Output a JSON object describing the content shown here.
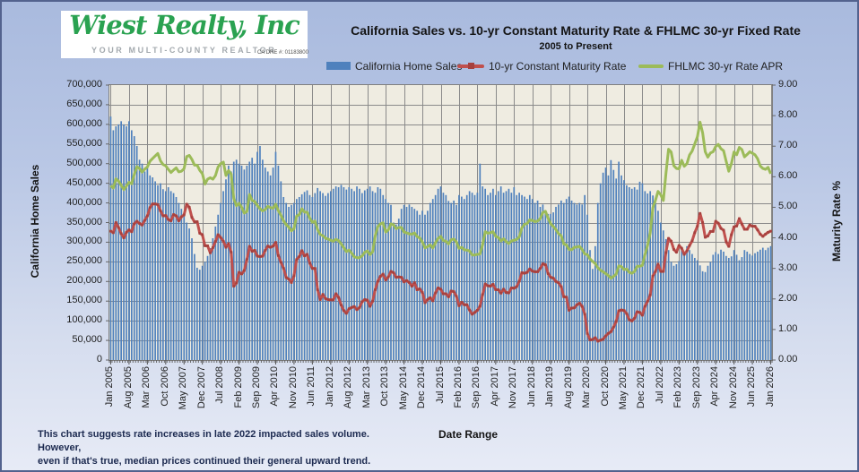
{
  "logo": {
    "name": "Wiest Realty, Inc",
    "name_color": "#2aa251",
    "tagline": "YOUR MULTI-COUNTY REALTOR",
    "license": "CA DRE #: 01183800"
  },
  "header": {
    "title": "California Sales vs. 10-yr Constant Maturity Rate & FHLMC 30-yr Fixed Rate",
    "subtitle": "2005 to Present"
  },
  "legend": {
    "sales_label": "California Home Sales",
    "cmt_label": "10-yr Constant Maturity Rate",
    "fhlmc_label": "FHLMC 30-yr Rate APR"
  },
  "footer": {
    "note_line1": "This chart suggests rate increases in late 2022 impacted sales volume. However,",
    "note_line2": "even if that's true, median prices continued their general upward trend."
  },
  "chart_data": {
    "type": "combo",
    "title": "California Sales vs. 10-yr Constant Maturity Rate & FHLMC 30-yr Fixed Rate",
    "subtitle": "2005 to Present",
    "x_label": "Date Range",
    "y_left_label": "California  Home Sales",
    "y_right_label": "Maturity Rate %",
    "y_left_range": [
      0,
      700000
    ],
    "y_left_tick_step": 50000,
    "y_right_range": [
      0,
      9
    ],
    "y_right_tick_step": 1,
    "grid": true,
    "legend_position": "top",
    "plot_background": "#EFECE1",
    "gridline_color": "#8a8a8a",
    "n_points": 253,
    "x_start": "Jan 2005",
    "x_end": "Jan 2026",
    "x_tick_interval_months": 7,
    "x_tick_labels": [
      "Jan 2005",
      "Aug 2005",
      "Mar 2006",
      "Oct 2006",
      "May 2007",
      "Dec 2007",
      "Jul 2008",
      "Feb 2009",
      "Sep 2009",
      "Apr 2010",
      "Nov 2010",
      "Jun 2011",
      "Jan 2012",
      "Aug 2012",
      "Mar 2013",
      "Oct 2013",
      "May 2014",
      "Dec 2014",
      "Jul 2015",
      "Feb 2016",
      "Sep 2016",
      "Apr 2017",
      "Nov 2017",
      "Jun 2018",
      "Jan 2019",
      "Aug 2019",
      "Mar 2020",
      "Oct 2020",
      "May 2021",
      "Dec 2021",
      "Jul 2022",
      "Feb 2023",
      "Sep 2023",
      "Apr 2024",
      "Nov 2024",
      "Jun 2025",
      "Jan 2026"
    ],
    "y_left_tick_labels": [
      "700,000",
      "650,000",
      "600,000",
      "550,000",
      "500,000",
      "450,000",
      "400,000",
      "350,000",
      "300,000",
      "250,000",
      "200,000",
      "150,000",
      "100,000",
      "50,000",
      "0"
    ],
    "y_right_tick_labels": [
      "9.00",
      "8.00",
      "7.00",
      "6.00",
      "5.00",
      "4.00",
      "3.00",
      "2.00",
      "1.00",
      "0.00"
    ],
    "series": [
      {
        "name": "California Home Sales",
        "type": "bar",
        "axis": "left",
        "color": "#4F81BD",
        "unit": "homes, thousands (annualized monthly, Jan 2005 - Jan 2026, estimated from chart)",
        "values_thousands": [
          620,
          585,
          595,
          600,
          608,
          600,
          595,
          608,
          585,
          570,
          545,
          510,
          500,
          480,
          495,
          470,
          465,
          455,
          445,
          450,
          435,
          430,
          440,
          430,
          425,
          415,
          400,
          385,
          370,
          350,
          335,
          310,
          270,
          235,
          230,
          240,
          250,
          265,
          285,
          310,
          340,
          370,
          400,
          430,
          460,
          495,
          480,
          505,
          510,
          500,
          495,
          485,
          495,
          505,
          515,
          500,
          530,
          545,
          510,
          490,
          480,
          470,
          490,
          530,
          495,
          455,
          415,
          400,
          390,
          395,
          400,
          410,
          415,
          422,
          428,
          432,
          420,
          415,
          425,
          438,
          430,
          425,
          418,
          425,
          430,
          436,
          442,
          440,
          446,
          440,
          434,
          440,
          436,
          430,
          442,
          436,
          425,
          432,
          436,
          442,
          430,
          426,
          440,
          436,
          420,
          410,
          400,
          395,
          350,
          345,
          360,
          385,
          395,
          390,
          396,
          390,
          385,
          380,
          370,
          380,
          370,
          380,
          400,
          410,
          420,
          436,
          442,
          426,
          420,
          405,
          400,
          406,
          395,
          420,
          416,
          410,
          420,
          430,
          426,
          420,
          426,
          500,
          442,
          436,
          420,
          426,
          436,
          420,
          430,
          442,
          426,
          430,
          436,
          426,
          440,
          420,
          426,
          420,
          416,
          410,
          420,
          410,
          400,
          406,
          390,
          396,
          380,
          372,
          372,
          376,
          390,
          396,
          406,
          400,
          410,
          416,
          406,
          400,
          396,
          400,
          396,
          420,
          370,
          280,
          232,
          290,
          400,
          450,
          477,
          490,
          470,
          509,
          484,
          462,
          505,
          470,
          458,
          445,
          440,
          436,
          440,
          434,
          454,
          450,
          430,
          424,
          430,
          419,
          400,
          380,
          350,
          330,
          308,
          280,
          250,
          240,
          244,
          252,
          281,
          268,
          290,
          280,
          270,
          260,
          254,
          241,
          226,
          224,
          240,
          250,
          268,
          275,
          270,
          281,
          276,
          265,
          260,
          264,
          280,
          268,
          254,
          262,
          280,
          276,
          270,
          266,
          272,
          276,
          281,
          286,
          280,
          286,
          290
        ]
      },
      {
        "name": "10-yr Constant Maturity Rate",
        "type": "line",
        "axis": "right",
        "color": "#C0504D",
        "marker_color": "#A6413E",
        "unit": "percent (monthly, Jan 2005 - Jan 2026, estimated from chart)",
        "values_percent": [
          4.22,
          4.17,
          4.5,
          4.34,
          4.14,
          4.0,
          4.18,
          4.26,
          4.2,
          4.46,
          4.54,
          4.47,
          4.42,
          4.57,
          4.72,
          4.99,
          5.11,
          5.11,
          5.09,
          4.88,
          4.72,
          4.73,
          4.6,
          4.56,
          4.76,
          4.72,
          4.56,
          4.69,
          4.75,
          5.1,
          5.0,
          4.67,
          4.52,
          4.53,
          4.15,
          4.1,
          3.74,
          3.74,
          3.51,
          3.68,
          3.88,
          4.1,
          4.01,
          3.89,
          3.69,
          3.81,
          3.53,
          2.42,
          2.52,
          2.87,
          2.82,
          2.93,
          3.29,
          3.72,
          3.56,
          3.59,
          3.4,
          3.39,
          3.4,
          3.59,
          3.73,
          3.69,
          3.73,
          3.85,
          3.42,
          3.2,
          3.01,
          2.7,
          2.65,
          2.54,
          2.76,
          3.29,
          3.39,
          3.58,
          3.41,
          3.46,
          3.17,
          3.0,
          3.0,
          2.3,
          1.98,
          2.15,
          2.01,
          1.98,
          1.97,
          1.97,
          2.17,
          2.05,
          1.8,
          1.62,
          1.53,
          1.68,
          1.72,
          1.75,
          1.65,
          1.72,
          1.91,
          1.98,
          1.96,
          1.76,
          1.93,
          2.3,
          2.58,
          2.74,
          2.81,
          2.62,
          2.72,
          2.9,
          2.86,
          2.71,
          2.72,
          2.71,
          2.56,
          2.6,
          2.54,
          2.42,
          2.53,
          2.3,
          2.33,
          2.21,
          1.88,
          1.98,
          2.04,
          1.94,
          2.2,
          2.36,
          2.32,
          2.17,
          2.17,
          2.07,
          2.26,
          2.24,
          2.09,
          1.78,
          1.89,
          1.81,
          1.81,
          1.64,
          1.5,
          1.56,
          1.63,
          1.76,
          2.14,
          2.49,
          2.43,
          2.42,
          2.48,
          2.3,
          2.3,
          2.19,
          2.32,
          2.21,
          2.2,
          2.36,
          2.35,
          2.4,
          2.58,
          2.86,
          2.84,
          2.87,
          2.98,
          2.91,
          2.89,
          2.89,
          3.0,
          3.15,
          3.12,
          2.83,
          2.71,
          2.68,
          2.57,
          2.53,
          2.4,
          2.07,
          2.06,
          1.63,
          1.7,
          1.71,
          1.81,
          1.86,
          1.76,
          1.5,
          0.87,
          0.66,
          0.67,
          0.73,
          0.62,
          0.65,
          0.68,
          0.79,
          0.87,
          0.93,
          1.08,
          1.26,
          1.61,
          1.64,
          1.62,
          1.52,
          1.32,
          1.28,
          1.37,
          1.58,
          1.56,
          1.47,
          1.76,
          1.93,
          2.13,
          2.75,
          2.9,
          3.14,
          2.9,
          2.9,
          3.52,
          3.98,
          3.89,
          3.62,
          3.53,
          3.75,
          3.66,
          3.46,
          3.57,
          3.75,
          3.9,
          4.17,
          4.38,
          4.8,
          4.5,
          4.02,
          4.06,
          4.21,
          4.21,
          4.54,
          4.48,
          4.31,
          4.25,
          3.87,
          3.72,
          4.1,
          4.36,
          4.39,
          4.63,
          4.45,
          4.28,
          4.28,
          4.42,
          4.38,
          4.38,
          4.26,
          4.12,
          4.05,
          4.12,
          4.18,
          4.22
        ]
      },
      {
        "name": "FHLMC 30-yr Rate APR",
        "type": "line",
        "axis": "right",
        "color": "#9CBB59",
        "unit": "percent (monthly, Jan 2005 - Jan 2026, estimated from chart)",
        "values_percent": [
          5.71,
          5.63,
          5.93,
          5.86,
          5.72,
          5.58,
          5.7,
          5.82,
          5.77,
          6.07,
          6.33,
          6.27,
          6.15,
          6.25,
          6.32,
          6.51,
          6.6,
          6.68,
          6.76,
          6.52,
          6.4,
          6.36,
          6.24,
          6.14,
          6.22,
          6.29,
          6.16,
          6.18,
          6.26,
          6.66,
          6.7,
          6.57,
          6.38,
          6.38,
          6.21,
          6.1,
          5.76,
          5.92,
          5.97,
          5.92,
          6.04,
          6.32,
          6.43,
          6.48,
          6.04,
          6.2,
          6.09,
          5.29,
          5.05,
          5.13,
          5.0,
          4.81,
          4.86,
          5.42,
          5.22,
          5.19,
          5.06,
          4.95,
          4.88,
          4.93,
          5.03,
          4.99,
          4.97,
          5.1,
          4.89,
          4.74,
          4.56,
          4.43,
          4.35,
          4.23,
          4.3,
          4.71,
          4.76,
          4.95,
          4.84,
          4.84,
          4.64,
          4.51,
          4.55,
          4.27,
          4.11,
          4.07,
          3.99,
          3.96,
          3.92,
          3.89,
          3.95,
          3.91,
          3.8,
          3.68,
          3.55,
          3.6,
          3.5,
          3.38,
          3.35,
          3.35,
          3.41,
          3.53,
          3.57,
          3.45,
          3.54,
          4.07,
          4.37,
          4.46,
          4.49,
          4.19,
          4.26,
          4.46,
          4.43,
          4.3,
          4.34,
          4.34,
          4.19,
          4.16,
          4.13,
          4.12,
          4.16,
          4.04,
          4.0,
          3.86,
          3.67,
          3.71,
          3.77,
          3.67,
          3.84,
          3.98,
          4.05,
          3.91,
          3.89,
          3.8,
          3.94,
          3.96,
          3.87,
          3.66,
          3.69,
          3.61,
          3.6,
          3.57,
          3.44,
          3.44,
          3.46,
          3.47,
          3.77,
          4.2,
          4.15,
          4.17,
          4.2,
          4.05,
          4.01,
          3.9,
          3.97,
          3.88,
          3.81,
          3.9,
          3.92,
          3.95,
          4.03,
          4.33,
          4.44,
          4.47,
          4.59,
          4.57,
          4.53,
          4.55,
          4.63,
          4.83,
          4.87,
          4.64,
          4.46,
          4.37,
          4.27,
          4.14,
          4.07,
          3.8,
          3.77,
          3.62,
          3.61,
          3.69,
          3.7,
          3.72,
          3.62,
          3.47,
          3.45,
          3.31,
          3.23,
          3.16,
          3.02,
          2.94,
          2.89,
          2.83,
          2.77,
          2.68,
          2.74,
          2.81,
          3.08,
          3.06,
          2.96,
          2.98,
          2.87,
          2.84,
          2.9,
          3.07,
          3.07,
          3.1,
          3.45,
          3.76,
          4.17,
          4.98,
          5.23,
          5.52,
          5.41,
          5.22,
          6.11,
          6.9,
          6.81,
          6.36,
          6.27,
          6.26,
          6.54,
          6.34,
          6.43,
          6.71,
          6.84,
          7.07,
          7.31,
          7.79,
          7.44,
          6.82,
          6.64,
          6.78,
          6.82,
          6.99,
          7.06,
          6.92,
          6.85,
          6.5,
          6.18,
          6.43,
          6.81,
          6.72,
          6.96,
          6.89,
          6.65,
          6.73,
          6.82,
          6.77,
          6.72,
          6.59,
          6.35,
          6.27,
          6.24,
          6.31,
          6.1
        ]
      }
    ]
  }
}
